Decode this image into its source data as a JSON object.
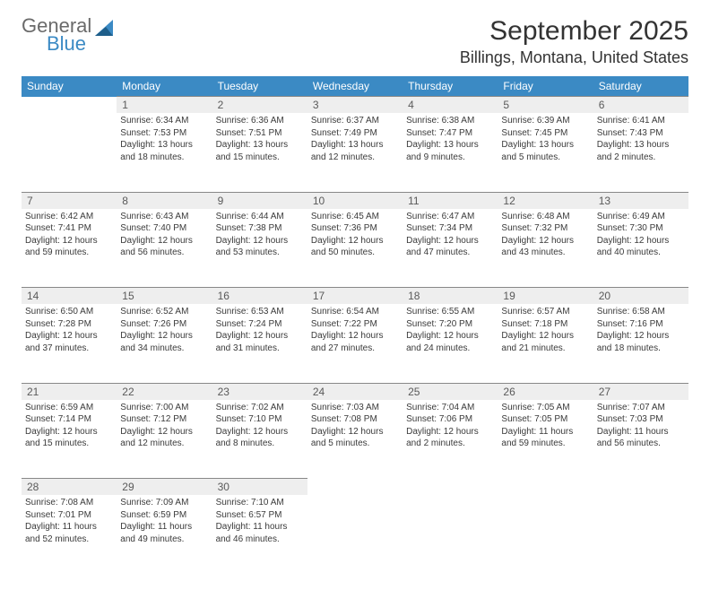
{
  "logo": {
    "word1": "General",
    "word2": "Blue"
  },
  "title": "September 2025",
  "location": "Billings, Montana, United States",
  "colors": {
    "header_bg": "#3b8ac4",
    "header_text": "#ffffff",
    "daynum_bg": "#eeeeee",
    "daynum_border": "#888888",
    "text": "#3a3a3a",
    "title_text": "#333333",
    "logo_gray": "#6a6a6a",
    "logo_blue": "#3b8ac4"
  },
  "weekdays": [
    "Sunday",
    "Monday",
    "Tuesday",
    "Wednesday",
    "Thursday",
    "Friday",
    "Saturday"
  ],
  "weeks": [
    {
      "nums": [
        "",
        "1",
        "2",
        "3",
        "4",
        "5",
        "6"
      ],
      "cells": [
        {
          "blank": true
        },
        {
          "sunrise": "Sunrise: 6:34 AM",
          "sunset": "Sunset: 7:53 PM",
          "dl1": "Daylight: 13 hours",
          "dl2": "and 18 minutes."
        },
        {
          "sunrise": "Sunrise: 6:36 AM",
          "sunset": "Sunset: 7:51 PM",
          "dl1": "Daylight: 13 hours",
          "dl2": "and 15 minutes."
        },
        {
          "sunrise": "Sunrise: 6:37 AM",
          "sunset": "Sunset: 7:49 PM",
          "dl1": "Daylight: 13 hours",
          "dl2": "and 12 minutes."
        },
        {
          "sunrise": "Sunrise: 6:38 AM",
          "sunset": "Sunset: 7:47 PM",
          "dl1": "Daylight: 13 hours",
          "dl2": "and 9 minutes."
        },
        {
          "sunrise": "Sunrise: 6:39 AM",
          "sunset": "Sunset: 7:45 PM",
          "dl1": "Daylight: 13 hours",
          "dl2": "and 5 minutes."
        },
        {
          "sunrise": "Sunrise: 6:41 AM",
          "sunset": "Sunset: 7:43 PM",
          "dl1": "Daylight: 13 hours",
          "dl2": "and 2 minutes."
        }
      ]
    },
    {
      "nums": [
        "7",
        "8",
        "9",
        "10",
        "11",
        "12",
        "13"
      ],
      "cells": [
        {
          "sunrise": "Sunrise: 6:42 AM",
          "sunset": "Sunset: 7:41 PM",
          "dl1": "Daylight: 12 hours",
          "dl2": "and 59 minutes."
        },
        {
          "sunrise": "Sunrise: 6:43 AM",
          "sunset": "Sunset: 7:40 PM",
          "dl1": "Daylight: 12 hours",
          "dl2": "and 56 minutes."
        },
        {
          "sunrise": "Sunrise: 6:44 AM",
          "sunset": "Sunset: 7:38 PM",
          "dl1": "Daylight: 12 hours",
          "dl2": "and 53 minutes."
        },
        {
          "sunrise": "Sunrise: 6:45 AM",
          "sunset": "Sunset: 7:36 PM",
          "dl1": "Daylight: 12 hours",
          "dl2": "and 50 minutes."
        },
        {
          "sunrise": "Sunrise: 6:47 AM",
          "sunset": "Sunset: 7:34 PM",
          "dl1": "Daylight: 12 hours",
          "dl2": "and 47 minutes."
        },
        {
          "sunrise": "Sunrise: 6:48 AM",
          "sunset": "Sunset: 7:32 PM",
          "dl1": "Daylight: 12 hours",
          "dl2": "and 43 minutes."
        },
        {
          "sunrise": "Sunrise: 6:49 AM",
          "sunset": "Sunset: 7:30 PM",
          "dl1": "Daylight: 12 hours",
          "dl2": "and 40 minutes."
        }
      ]
    },
    {
      "nums": [
        "14",
        "15",
        "16",
        "17",
        "18",
        "19",
        "20"
      ],
      "cells": [
        {
          "sunrise": "Sunrise: 6:50 AM",
          "sunset": "Sunset: 7:28 PM",
          "dl1": "Daylight: 12 hours",
          "dl2": "and 37 minutes."
        },
        {
          "sunrise": "Sunrise: 6:52 AM",
          "sunset": "Sunset: 7:26 PM",
          "dl1": "Daylight: 12 hours",
          "dl2": "and 34 minutes."
        },
        {
          "sunrise": "Sunrise: 6:53 AM",
          "sunset": "Sunset: 7:24 PM",
          "dl1": "Daylight: 12 hours",
          "dl2": "and 31 minutes."
        },
        {
          "sunrise": "Sunrise: 6:54 AM",
          "sunset": "Sunset: 7:22 PM",
          "dl1": "Daylight: 12 hours",
          "dl2": "and 27 minutes."
        },
        {
          "sunrise": "Sunrise: 6:55 AM",
          "sunset": "Sunset: 7:20 PM",
          "dl1": "Daylight: 12 hours",
          "dl2": "and 24 minutes."
        },
        {
          "sunrise": "Sunrise: 6:57 AM",
          "sunset": "Sunset: 7:18 PM",
          "dl1": "Daylight: 12 hours",
          "dl2": "and 21 minutes."
        },
        {
          "sunrise": "Sunrise: 6:58 AM",
          "sunset": "Sunset: 7:16 PM",
          "dl1": "Daylight: 12 hours",
          "dl2": "and 18 minutes."
        }
      ]
    },
    {
      "nums": [
        "21",
        "22",
        "23",
        "24",
        "25",
        "26",
        "27"
      ],
      "cells": [
        {
          "sunrise": "Sunrise: 6:59 AM",
          "sunset": "Sunset: 7:14 PM",
          "dl1": "Daylight: 12 hours",
          "dl2": "and 15 minutes."
        },
        {
          "sunrise": "Sunrise: 7:00 AM",
          "sunset": "Sunset: 7:12 PM",
          "dl1": "Daylight: 12 hours",
          "dl2": "and 12 minutes."
        },
        {
          "sunrise": "Sunrise: 7:02 AM",
          "sunset": "Sunset: 7:10 PM",
          "dl1": "Daylight: 12 hours",
          "dl2": "and 8 minutes."
        },
        {
          "sunrise": "Sunrise: 7:03 AM",
          "sunset": "Sunset: 7:08 PM",
          "dl1": "Daylight: 12 hours",
          "dl2": "and 5 minutes."
        },
        {
          "sunrise": "Sunrise: 7:04 AM",
          "sunset": "Sunset: 7:06 PM",
          "dl1": "Daylight: 12 hours",
          "dl2": "and 2 minutes."
        },
        {
          "sunrise": "Sunrise: 7:05 AM",
          "sunset": "Sunset: 7:05 PM",
          "dl1": "Daylight: 11 hours",
          "dl2": "and 59 minutes."
        },
        {
          "sunrise": "Sunrise: 7:07 AM",
          "sunset": "Sunset: 7:03 PM",
          "dl1": "Daylight: 11 hours",
          "dl2": "and 56 minutes."
        }
      ]
    },
    {
      "nums": [
        "28",
        "29",
        "30",
        "",
        "",
        "",
        ""
      ],
      "cells": [
        {
          "sunrise": "Sunrise: 7:08 AM",
          "sunset": "Sunset: 7:01 PM",
          "dl1": "Daylight: 11 hours",
          "dl2": "and 52 minutes."
        },
        {
          "sunrise": "Sunrise: 7:09 AM",
          "sunset": "Sunset: 6:59 PM",
          "dl1": "Daylight: 11 hours",
          "dl2": "and 49 minutes."
        },
        {
          "sunrise": "Sunrise: 7:10 AM",
          "sunset": "Sunset: 6:57 PM",
          "dl1": "Daylight: 11 hours",
          "dl2": "and 46 minutes."
        },
        {
          "blank": true
        },
        {
          "blank": true
        },
        {
          "blank": true
        },
        {
          "blank": true
        }
      ]
    }
  ]
}
